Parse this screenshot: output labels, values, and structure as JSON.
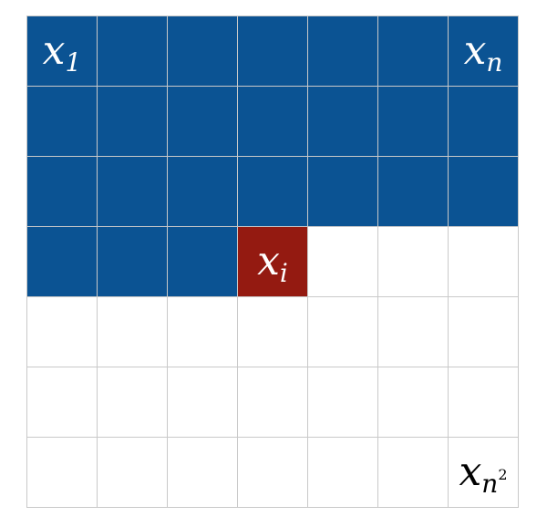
{
  "colors": {
    "visited": "#0b5393",
    "current": "#941a11",
    "empty": "#ffffff",
    "grid_line": "#c9c9c9",
    "label_on_fill": "#ffffff",
    "label_on_empty": "#000000"
  },
  "grid": {
    "rows": 7,
    "cols": 7,
    "cells": [
      [
        "visited",
        "visited",
        "visited",
        "visited",
        "visited",
        "visited",
        "visited"
      ],
      [
        "visited",
        "visited",
        "visited",
        "visited",
        "visited",
        "visited",
        "visited"
      ],
      [
        "visited",
        "visited",
        "visited",
        "visited",
        "visited",
        "visited",
        "visited"
      ],
      [
        "visited",
        "visited",
        "visited",
        "current",
        "empty",
        "empty",
        "empty"
      ],
      [
        "empty",
        "empty",
        "empty",
        "empty",
        "empty",
        "empty",
        "empty"
      ],
      [
        "empty",
        "empty",
        "empty",
        "empty",
        "empty",
        "empty",
        "empty"
      ],
      [
        "empty",
        "empty",
        "empty",
        "empty",
        "empty",
        "empty",
        "empty"
      ]
    ]
  },
  "labels": {
    "first": {
      "base": "x",
      "sub": "1",
      "sup": ""
    },
    "row_end": {
      "base": "x",
      "sub": "n",
      "sup": ""
    },
    "current": {
      "base": "x",
      "sub": "i",
      "sup": ""
    },
    "last": {
      "base": "x",
      "sub": "n",
      "sup": "2"
    }
  }
}
